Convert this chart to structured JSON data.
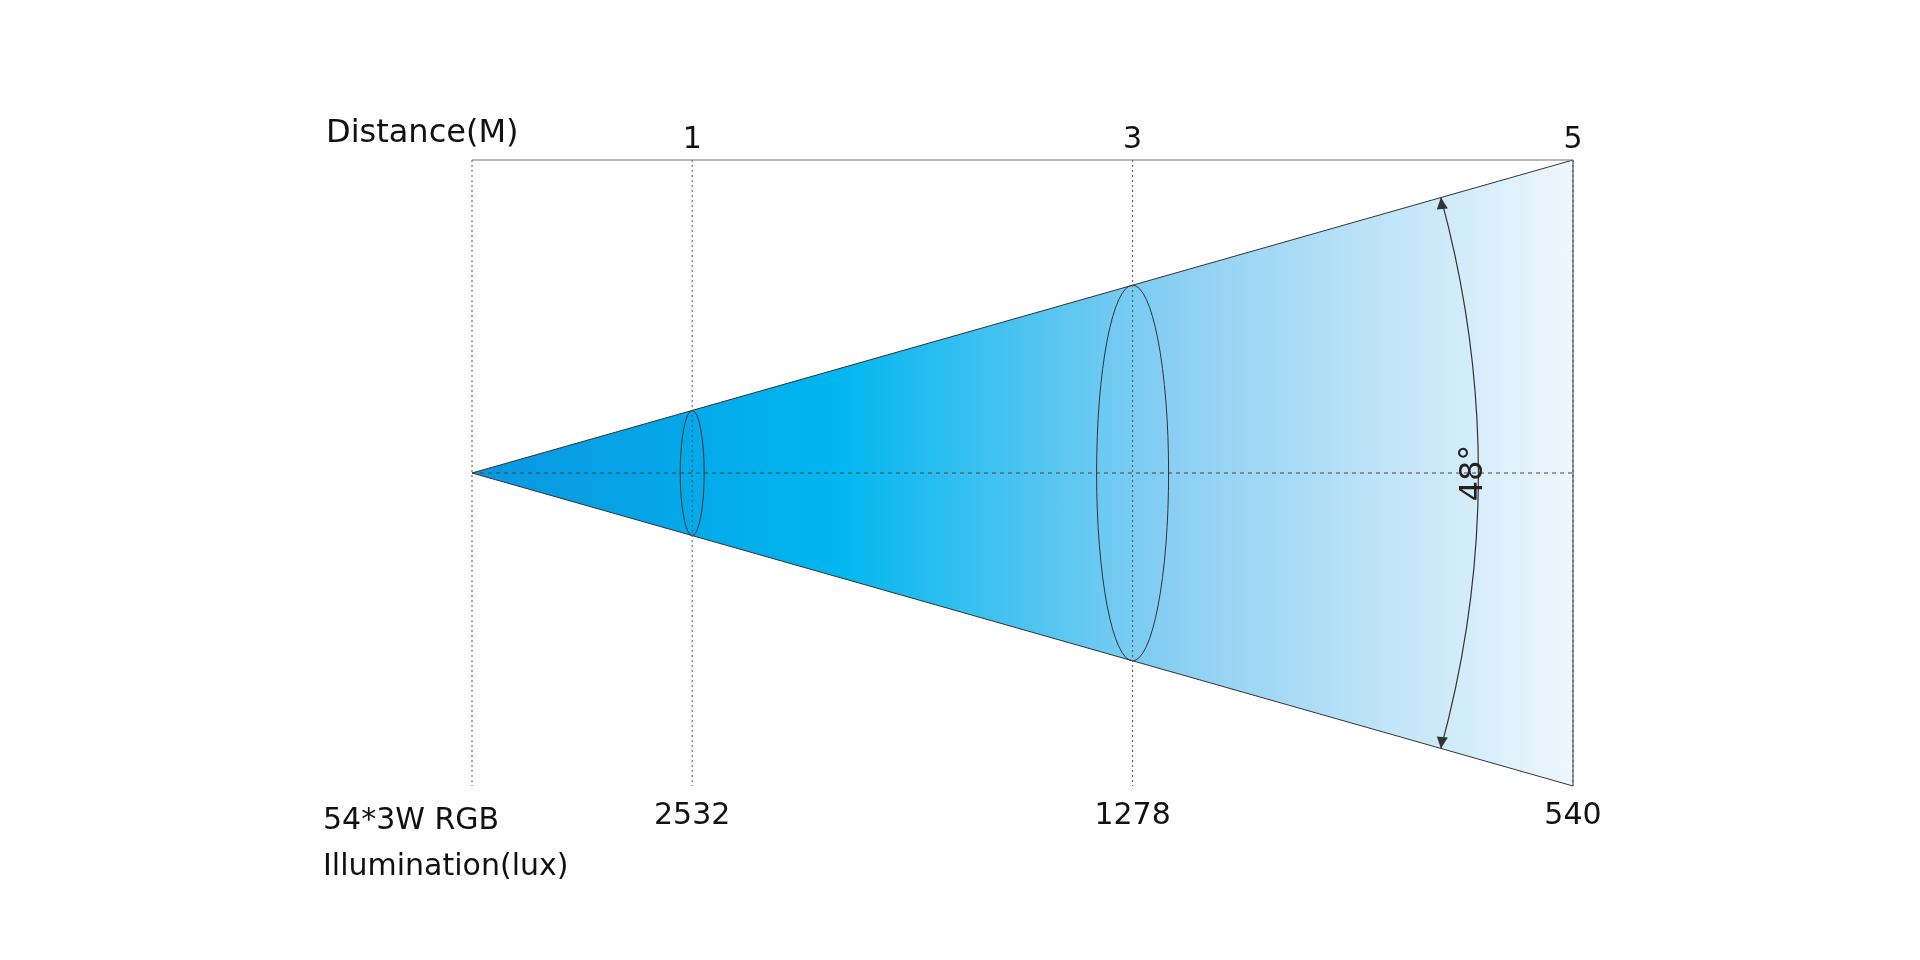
{
  "chart_data": {
    "type": "other",
    "xlabel": "Distance(M)",
    "ylabel": "54*3W RGB Illumination(lux)",
    "categories": [
      "1",
      "3",
      "5"
    ],
    "values": [
      2532,
      1278,
      540
    ],
    "data_labels": true,
    "annotations": [
      "48°"
    ]
  }
}
